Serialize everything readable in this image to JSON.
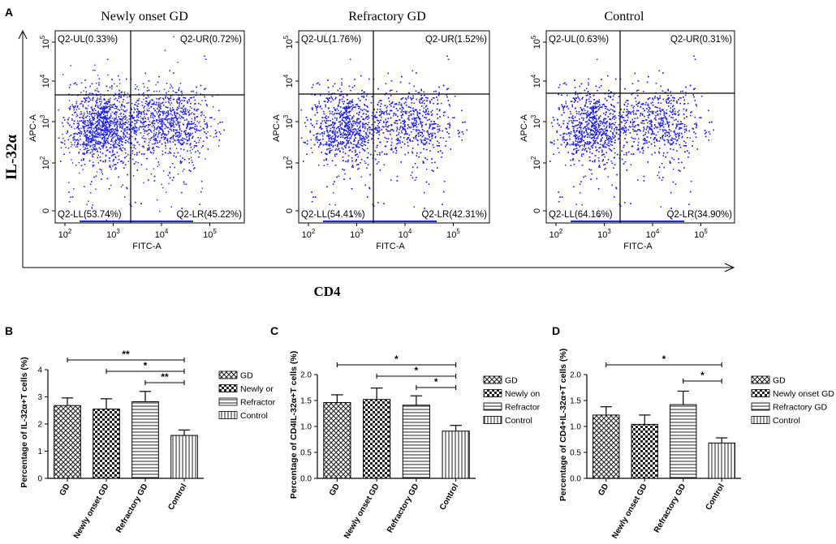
{
  "figure": {
    "panel_a_letter": "A",
    "y_axis_label": "IL-32α",
    "x_axis_label": "CD4",
    "accent_color": "#1f1fff"
  },
  "flow_panels": [
    {
      "title": "Newly onset GD",
      "quadrants": {
        "ul": "Q2-UL(0.33%)",
        "ur": "Q2-UR(0.72%)",
        "ll": "Q2-LL(53.74%)",
        "lr": "Q2-LR(45.22%)"
      },
      "x_axis": "FITC-A",
      "y_axis": "APC-A",
      "x_ticks": [
        "10^2",
        "10^3",
        "10^4",
        "10^5"
      ],
      "y_ticks": [
        "0",
        "10^2",
        "10^3",
        "10^4",
        "10^5"
      ]
    },
    {
      "title": "Refractory GD",
      "quadrants": {
        "ul": "Q2-UL(1.76%)",
        "ur": "Q2-UR(1.52%)",
        "ll": "Q2-LL(54.41%)",
        "lr": "Q2-LR(42.31%)"
      },
      "x_axis": "FITC-A",
      "y_axis": "APC-A",
      "x_ticks": [
        "10^2",
        "10^3",
        "10^4",
        "10^5"
      ],
      "y_ticks": [
        "0",
        "10^2",
        "10^3",
        "10^4",
        "10^5"
      ]
    },
    {
      "title": "Control",
      "quadrants": {
        "ul": "Q2-UL(0.63%)",
        "ur": "Q2-UR(0.31%)",
        "ll": "Q2-LL(64.16%)",
        "lr": "Q2-LR(34.90%)"
      },
      "x_axis": "FITC-A",
      "y_axis": "APC-A",
      "x_ticks": [
        "10^2",
        "10^3",
        "10^4",
        "10^5"
      ],
      "y_ticks": [
        "0",
        "10^2",
        "10^3",
        "10^4",
        "10^5"
      ]
    }
  ],
  "chart_data": [
    {
      "panel": "B",
      "type": "bar",
      "ylabel": "Percentage of IL-32α+T cells (%)",
      "ylim": [
        0,
        4
      ],
      "yticks": [
        "0",
        "1",
        "2",
        "3",
        "4"
      ],
      "categories": [
        "GD",
        "Newly onset GD",
        "Refractory GD",
        "Control"
      ],
      "values": [
        2.68,
        2.55,
        2.82,
        1.58
      ],
      "errors": [
        0.28,
        0.38,
        0.38,
        0.2
      ],
      "legend": [
        "GD",
        "Newly or",
        "Refractor",
        "Control"
      ],
      "significance": [
        {
          "from": 0,
          "to": 3,
          "label": "**"
        },
        {
          "from": 1,
          "to": 3,
          "label": "*"
        },
        {
          "from": 2,
          "to": 3,
          "label": "**"
        }
      ]
    },
    {
      "panel": "C",
      "type": "bar",
      "ylabel": "Percentage of CD4IL-32α+T cells (%)",
      "ylim": [
        0,
        2
      ],
      "yticks": [
        "0.0",
        "0.5",
        "1.0",
        "1.5",
        "2.0"
      ],
      "categories": [
        "GD",
        "Newly onset GD",
        "Refractory GD",
        "Control"
      ],
      "values": [
        1.46,
        1.52,
        1.41,
        0.91
      ],
      "errors": [
        0.15,
        0.22,
        0.18,
        0.11
      ],
      "legend": [
        "GD",
        "Newly on",
        "Refractor",
        "Control"
      ],
      "significance": [
        {
          "from": 0,
          "to": 3,
          "label": "*"
        },
        {
          "from": 1,
          "to": 3,
          "label": "*"
        },
        {
          "from": 2,
          "to": 3,
          "label": "*"
        }
      ]
    },
    {
      "panel": "D",
      "type": "bar",
      "ylabel": "Percentage of CD4+IL-32α+T cells (%)",
      "ylim": [
        0,
        2
      ],
      "yticks": [
        "0.0",
        "0.5",
        "1.0",
        "1.5",
        "2.0"
      ],
      "categories": [
        "GD",
        "Newly onset GD",
        "Refractory GD",
        "Control"
      ],
      "values": [
        1.22,
        1.04,
        1.42,
        0.68
      ],
      "errors": [
        0.16,
        0.18,
        0.26,
        0.1
      ],
      "legend": [
        "GD",
        "Newly onset GD",
        "Refractory GD",
        "Control"
      ],
      "significance": [
        {
          "from": 0,
          "to": 3,
          "label": "*"
        },
        {
          "from": 2,
          "to": 3,
          "label": "*"
        }
      ]
    }
  ]
}
